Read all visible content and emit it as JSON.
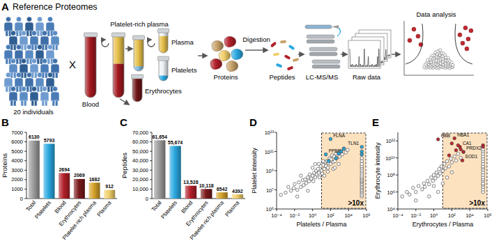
{
  "diagram": {
    "panel": "A",
    "title": "Reference Proteomes",
    "individuals": "20 individuals",
    "cross": "X",
    "blood": "Blood",
    "platelet_rich_plasma": "Platelet-rich plasma",
    "plasma": "Plasma",
    "platelets": "Platelets",
    "erythrocytes": "Erythrocytes",
    "digestion": "Digestion",
    "proteins": "Proteins",
    "peptides": "Peptides",
    "instrument": "LC-MS/MS",
    "raw_data": "Raw data",
    "data_analysis": "Data analysis"
  },
  "chart_data": [
    {
      "type": "bar",
      "annotations": [
        {
          "text": "B"
        }
      ],
      "ylabel": "Proteins",
      "categories": [
        "Total",
        "Platelets",
        "Blood",
        "Erythrocytes",
        "Platelet-rich plasma",
        "Plasma"
      ],
      "values": [
        6130,
        5793,
        2694,
        2069,
        1682,
        912
      ],
      "colors": [
        "#9b9b9b",
        "#2aa8e0",
        "#b3202a",
        "#7a1a1c",
        "#d4a22a",
        "#f0cf6a"
      ],
      "ylim": [
        0,
        7000
      ],
      "yticks": [
        0,
        1000,
        2000,
        3000,
        4000,
        5000,
        6000,
        7000
      ],
      "data_labels": true
    },
    {
      "type": "bar",
      "annotations": [
        {
          "text": "C"
        }
      ],
      "ylabel": "Peptides",
      "categories": [
        "Total",
        "Platelets",
        "Blood",
        "Erythrocytes",
        "Platelet-rich plasma",
        "Plasma"
      ],
      "values": [
        61654,
        55674,
        13528,
        10118,
        6542,
        4392
      ],
      "value_labels": [
        "61,654",
        "55,674",
        "13,528",
        "10,118",
        "6542",
        "4392"
      ],
      "colors": [
        "#9b9b9b",
        "#2aa8e0",
        "#b3202a",
        "#7a1a1c",
        "#d4a22a",
        "#f0cf6a"
      ],
      "ylim": [
        0,
        70000
      ],
      "yticks": [
        0,
        {
          "value": 10000,
          "label": "10,000"
        },
        {
          "value": 20000,
          "label": "20,000"
        },
        {
          "value": 30000,
          "label": "30,000"
        },
        {
          "value": 40000,
          "label": "40,000"
        },
        {
          "value": 50000,
          "label": "50,000"
        },
        {
          "value": 60000,
          "label": "60,000"
        },
        {
          "value": 70000,
          "label": "70,000"
        }
      ],
      "data_labels": true
    },
    {
      "type": "scatter",
      "annotations": [
        {
          "text": "D"
        },
        {
          "text": ">10x",
          "x": [
            10,
            1000000
          ]
        }
      ],
      "xlabel": "Platelets / Plasma",
      "ylabel": "Platelet intensity",
      "log": true,
      "xlim": [
        0.0001,
        1000000
      ],
      "ylim": [
        100000,
        10000000000000
      ],
      "xticks": [
        {
          "value": 0.0001,
          "label": "10⁻⁴"
        },
        {
          "value": 0.01,
          "label": "10⁻²"
        },
        {
          "value": 1,
          "label": "10⁰"
        },
        {
          "value": 100,
          "label": "10²"
        },
        {
          "value": 10000,
          "label": "10⁴"
        },
        {
          "value": 1000000,
          "label": "10⁶"
        }
      ],
      "yticks": [
        {
          "value": 100000,
          "label": "10⁵"
        },
        {
          "value": 10000000,
          "label": "10⁷"
        },
        {
          "value": 1000000000,
          "label": "10⁹"
        },
        {
          "value": 100000000000,
          "label": "10¹¹"
        },
        {
          "value": 10000000000000,
          "label": "10¹³"
        }
      ],
      "series": [
        {
          "color": "#ffffff",
          "marker": "circle",
          "x": [
            0.0003,
            0.001,
            0.002,
            0.004,
            0.008,
            0.01,
            0.02,
            0.03,
            0.05,
            0.08,
            0.1,
            0.15,
            0.2,
            0.3,
            0.4,
            0.5,
            0.7,
            1,
            1.2,
            1.5,
            2,
            2.5,
            3,
            4,
            5,
            6,
            8,
            10,
            12,
            15,
            20,
            25,
            30,
            40,
            50,
            60,
            80,
            100,
            120,
            150,
            200,
            250,
            300,
            400,
            500,
            700,
            1000,
            1500,
            2000,
            3000,
            5000,
            8000,
            20,
            50,
            200,
            0.05,
            1,
            5,
            0.3,
            0.02,
            300,
            800,
            15,
            2,
            300000,
            300000,
            300000,
            300000,
            300000,
            300000,
            300000,
            300000,
            300000,
            300000,
            300000,
            300000,
            300000,
            300000,
            300000,
            300000,
            300000,
            300000,
            300000,
            300000,
            300000,
            300000,
            300000,
            300000
          ],
          "values": [
            3000000.0,
            5000000.0,
            20000000.0,
            8000000.0,
            15000000.0,
            40000000.0,
            10000000.0,
            60000000.0,
            20000000.0,
            100000000.0,
            30000000.0,
            120000000.0,
            50000000.0,
            200000000.0,
            80000000.0,
            400000000.0,
            150000000.0,
            300000000.0,
            80000000.0,
            600000000.0,
            200000000.0,
            1000000000.0,
            400000000.0,
            1500000000.0,
            600000000.0,
            200000000.0,
            3000000000.0,
            1000000000.0,
            500000000.0,
            4000000000.0,
            1500000000.0,
            8000000000.0,
            3000000000.0,
            10000000000.0,
            2000000000.0,
            6000000000.0,
            20000000000.0,
            5000000000.0,
            15000000000.0,
            40000000000.0,
            8000000000.0,
            30000000000.0,
            10000000000.0,
            60000000000.0,
            20000000000.0,
            80000000000.0,
            30000000000.0,
            100000000000.0,
            50000000000.0,
            200000000000.0,
            80000000000.0,
            150000000000.0,
            300000000.0,
            800000000.0,
            1500000000.0,
            300000000.0,
            2000000000.0,
            5000000000.0,
            8000000.0,
            2000000.0,
            2000000000.0,
            5000000000.0,
            10000000000.0,
            5000000000.0,
            2000000.0,
            3000000.0,
            5000000.0,
            7000000.0,
            10000000.0,
            15000000.0,
            20000000.0,
            30000000.0,
            40000000.0,
            60000000.0,
            80000000.0,
            100000000.0,
            150000000.0,
            200000000.0,
            300000000.0,
            500000000.0,
            800000000.0,
            1200000000.0,
            2000000000.0,
            3000000000.0,
            5000000000.0,
            10000000000.0,
            20000000000.0,
            50000000000.0
          ]
        },
        {
          "color": "#29a9e0",
          "marker": "circle",
          "x": [
            30,
            100,
            300000,
            1500,
            800,
            3000,
            400,
            300000,
            300000,
            60
          ],
          "values": [
            50000000000.0,
            2000000000000.0,
            300000000000.0,
            100000000000.0,
            60000000000.0,
            200000000000.0,
            20000000000.0,
            100000000000.0,
            50000000000.0,
            10000000000.0
          ],
          "point_labels": [
            "PPBP",
            "FLNA",
            "TLN1",
            null,
            null,
            null,
            null,
            null,
            null,
            null
          ]
        }
      ]
    },
    {
      "type": "scatter",
      "annotations": [
        {
          "text": "E"
        },
        {
          "text": ">10x",
          "x": [
            10,
            1000000
          ]
        }
      ],
      "xlabel": "Erythrocytes / Plasma",
      "ylabel": "Erythrocyte intensity",
      "log": true,
      "xlim": [
        0.0001,
        1000000
      ],
      "ylim": [
        10000,
        10000000000000
      ],
      "xticks": [
        {
          "value": 0.0001,
          "label": "10⁻⁴"
        },
        {
          "value": 0.01,
          "label": "10⁻²"
        },
        {
          "value": 1,
          "label": "10⁰"
        },
        {
          "value": 100,
          "label": "10²"
        },
        {
          "value": 10000,
          "label": "10⁴"
        },
        {
          "value": 1000000,
          "label": "10⁶"
        }
      ],
      "yticks": [
        {
          "value": 10000,
          "label": "10⁴"
        },
        {
          "value": 1000000,
          "label": "10⁶"
        },
        {
          "value": 100000000,
          "label": "10⁸"
        },
        {
          "value": 10000000000,
          "label": "10¹⁰"
        },
        {
          "value": 1000000000000,
          "label": "10¹²"
        }
      ],
      "series": [
        {
          "color": "#ffffff",
          "marker": "circle",
          "x": [
            0.0003,
            0.001,
            0.002,
            0.005,
            0.01,
            0.02,
            0.05,
            0.08,
            0.1,
            0.2,
            0.3,
            0.5,
            0.8,
            1,
            1.5,
            2,
            3,
            4,
            5,
            7,
            10,
            15,
            20,
            30,
            50,
            80,
            100,
            200,
            300,
            500,
            1000,
            2000,
            0.01,
            0.3,
            3,
            30,
            1,
            10,
            100,
            300000,
            300000,
            300000,
            300000,
            300000,
            300000,
            300000,
            300000,
            300000,
            300000,
            300000,
            300000,
            300000,
            300000,
            300000,
            300000,
            300000,
            300000,
            300000,
            300000
          ],
          "values": [
            300000.0,
            1000000.0,
            500000.0,
            3000000.0,
            1000000.0,
            5000000.0,
            2000000.0,
            10000000.0,
            4000000.0,
            20000000.0,
            8000000.0,
            50000000.0,
            20000000.0,
            100000000.0,
            40000000.0,
            200000000.0,
            80000000.0,
            500000000.0,
            150000000.0,
            1000000000.0,
            300000000.0,
            2000000000.0,
            600000000.0,
            4000000000.0,
            1000000000.0,
            8000000000.0,
            3000000000.0,
            15000000000.0,
            5000000000.0,
            30000000000.0,
            10000000000.0,
            50000000000.0,
            100000.0,
            300000.0,
            1000000.0,
            50000000.0,
            5000000.0,
            10000000.0,
            200000000.0,
            1000000.0,
            2000000.0,
            4000000.0,
            7000000.0,
            10000000.0,
            20000000.0,
            30000000.0,
            50000000.0,
            100000000.0,
            200000000.0,
            400000000.0,
            700000000.0,
            1000000000.0,
            2000000000.0,
            4000000000.0,
            8000000000.0,
            15000000000.0,
            30000000000.0,
            60000000000.0,
            100000000000.0
          ]
        },
        {
          "color": "#c0282e",
          "marker": "circle",
          "x": [
            3,
            200,
            800,
            2000,
            1500,
            100,
            300,
            500,
            1000,
            300000,
            300000,
            50
          ],
          "values": [
            1500000000000.0,
            2000000000000.0,
            200000000000.0,
            50000000000.0,
            5000000000.0,
            500000000000.0,
            80000000000.0,
            300000000000.0,
            100000000000.0,
            300000000000.0,
            200000000000.0,
            20000000000.0
          ],
          "point_labels": [
            "HBB",
            "HBA1",
            "CA1",
            "PRDX2",
            "SOD1",
            null,
            null,
            null,
            null,
            null,
            null,
            null
          ]
        }
      ]
    }
  ]
}
